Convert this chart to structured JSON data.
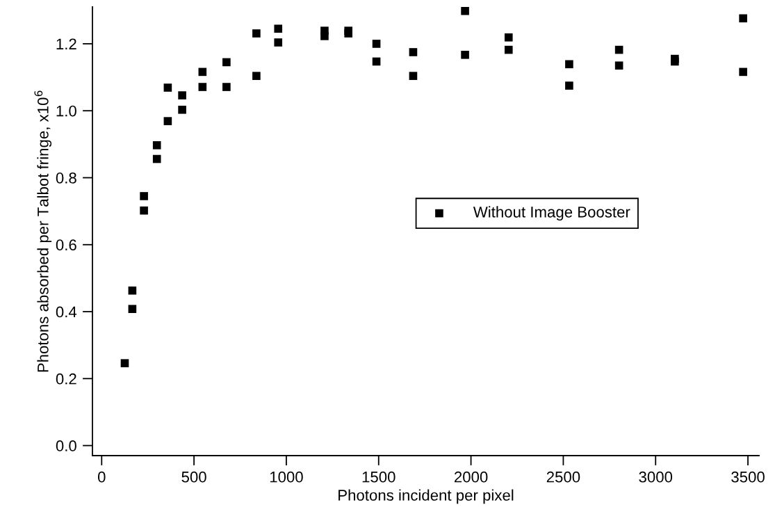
{
  "chart_data": {
    "type": "scatter",
    "xlabel": "Photons incident per pixel",
    "ylabel": "Photons absorbed per Talbot fringe, x10$^{6}$",
    "xlim": [
      -50,
      3560
    ],
    "ylim": [
      -0.03,
      1.31
    ],
    "xticks": [
      0,
      500,
      1000,
      1500,
      2000,
      2500,
      3000,
      3500
    ],
    "yticks": [
      {
        "value": 0,
        "label": "0.0"
      },
      {
        "value": 0.2,
        "label": "0.2"
      },
      {
        "value": 0.4,
        "label": "0.4"
      },
      {
        "value": 0.6,
        "label": "0.6"
      },
      {
        "value": 0.8,
        "label": "0.8"
      },
      {
        "value": 1.0,
        "label": "1.0"
      },
      {
        "value": 1.2,
        "label": "1.2"
      }
    ],
    "marker": "square",
    "legend": "right",
    "grid": false,
    "series": [
      {
        "name": "Without Image Booster",
        "color": "#000000",
        "x": [
          125,
          166,
          166,
          229,
          229,
          299,
          299,
          358,
          358,
          436,
          436,
          546,
          546,
          676,
          676,
          838,
          838,
          956,
          956,
          1207,
          1207,
          1336,
          1336,
          1488,
          1488,
          1687,
          1687,
          1968,
          1968,
          2204,
          2204,
          2532,
          2532,
          2802,
          2802,
          3104,
          3104,
          3474,
          3474
        ],
        "values": [
          0.246,
          0.463,
          0.408,
          0.745,
          0.702,
          0.897,
          0.856,
          1.069,
          0.969,
          1.046,
          1.003,
          1.116,
          1.071,
          1.145,
          1.071,
          1.231,
          1.104,
          1.245,
          1.204,
          1.223,
          1.239,
          1.231,
          1.239,
          1.2,
          1.147,
          1.175,
          1.104,
          1.298,
          1.167,
          1.219,
          1.182,
          1.139,
          1.075,
          1.182,
          1.135,
          1.155,
          1.147,
          1.276,
          1.116
        ]
      }
    ]
  }
}
